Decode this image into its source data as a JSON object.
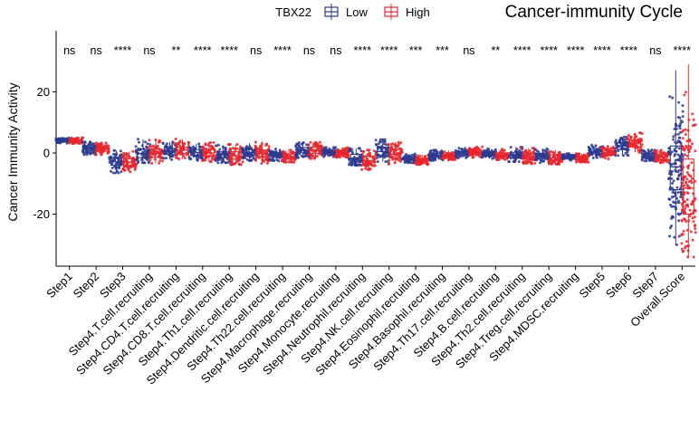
{
  "chart_data": {
    "type": "boxplot",
    "title": "Cancer-immunity Cycle",
    "ylabel": "Cancer Immunity Activity",
    "xlabel": "",
    "ylim": [
      -37,
      36
    ],
    "yticks": [
      -20,
      0,
      20
    ],
    "grid": false,
    "legend": {
      "title": "TBX22",
      "placement": "top",
      "entries": [
        {
          "name": "Low",
          "color": "#2b3b8f"
        },
        {
          "name": "High",
          "color": "#e8262b"
        }
      ]
    },
    "categories": [
      "Step1",
      "Step2",
      "Step3",
      "Step4.T.cell.recruiting",
      "Step4.CD4.T.cell.recruiting",
      "Step4.CD8.T.cell.recruiting",
      "Step4.Th1.cell.recruiting",
      "Step4.Dendritic.cell.recruiting",
      "Step4.Th22.cell.recruiting",
      "Step4.Macrophage.recruiting",
      "Step4.Monocyte.recruiting",
      "Step4.Neutrophil.recruiting",
      "Step4.NK.cell.recruiting",
      "Step4.Eosinophil.recruiting",
      "Step4.Basophil.recruiting",
      "Step4.Th17.cell.recruiting",
      "Step4.B.cell.recruiting",
      "Step4.Th2.cell.recruiting",
      "Step4.Treg.cell.recruiting",
      "Step4.MDSC.recruiting",
      "Step5",
      "Step6",
      "Step7",
      "Overall.Score"
    ],
    "significance": [
      "ns",
      "ns",
      "****",
      "ns",
      "**",
      "****",
      "****",
      "ns",
      "****",
      "ns",
      "ns",
      "****",
      "****",
      "***",
      "***",
      "ns",
      "**",
      "****",
      "****",
      "****",
      "****",
      "****",
      "ns",
      "****"
    ],
    "series": [
      {
        "name": "Low",
        "color": "#2b3b8f",
        "boxes": [
          {
            "min": 3.2,
            "q1": 3.7,
            "median": 4.1,
            "q3": 4.4,
            "max": 4.9
          },
          {
            "min": -0.5,
            "q1": 0.9,
            "median": 1.6,
            "q3": 2.4,
            "max": 3.6
          },
          {
            "min": -6.5,
            "q1": -4.0,
            "median": -2.8,
            "q3": -1.5,
            "max": 0.8
          },
          {
            "min": -3.2,
            "q1": -1.5,
            "median": -0.2,
            "q3": 1.2,
            "max": 4.5
          },
          {
            "min": -2.2,
            "q1": -0.5,
            "median": 0.5,
            "q3": 1.5,
            "max": 3.6
          },
          {
            "min": -2.4,
            "q1": -0.8,
            "median": 0.2,
            "q3": 1.1,
            "max": 3.0
          },
          {
            "min": -3.2,
            "q1": -1.6,
            "median": -0.6,
            "q3": 0.4,
            "max": 2.6
          },
          {
            "min": -2.5,
            "q1": -0.7,
            "median": 0.1,
            "q3": 1.1,
            "max": 3.2
          },
          {
            "min": -2.6,
            "q1": -1.4,
            "median": -0.7,
            "q3": 0.1,
            "max": 1.8
          },
          {
            "min": -1.6,
            "q1": 0.0,
            "median": 0.9,
            "q3": 1.8,
            "max": 3.4
          },
          {
            "min": -1.2,
            "q1": -0.2,
            "median": 0.3,
            "q3": 0.9,
            "max": 1.8
          },
          {
            "min": -4.0,
            "q1": -2.6,
            "median": -1.7,
            "q3": -0.4,
            "max": 1.5
          },
          {
            "min": -2.8,
            "q1": -0.8,
            "median": 0.5,
            "q3": 1.9,
            "max": 4.4
          },
          {
            "min": -3.2,
            "q1": -2.4,
            "median": -1.9,
            "q3": -1.3,
            "max": -0.3
          },
          {
            "min": -2.6,
            "q1": -1.4,
            "median": -0.8,
            "q3": -0.2,
            "max": 1.0
          },
          {
            "min": -1.6,
            "q1": -0.6,
            "median": -0.1,
            "q3": 0.5,
            "max": 1.6
          },
          {
            "min": -1.9,
            "q1": -0.9,
            "median": -0.3,
            "q3": 0.3,
            "max": 1.6
          },
          {
            "min": -2.8,
            "q1": -1.5,
            "median": -0.7,
            "q3": 0.2,
            "max": 1.9
          },
          {
            "min": -3.2,
            "q1": -1.8,
            "median": -1.0,
            "q3": -0.2,
            "max": 1.5
          },
          {
            "min": -2.4,
            "q1": -1.6,
            "median": -1.2,
            "q3": -0.8,
            "max": 0.0
          },
          {
            "min": -1.6,
            "q1": -0.2,
            "median": 0.5,
            "q3": 1.2,
            "max": 2.6
          },
          {
            "min": -0.8,
            "q1": 1.2,
            "median": 2.4,
            "q3": 3.4,
            "max": 5.2
          },
          {
            "min": -2.6,
            "q1": -1.7,
            "median": -1.0,
            "q3": -0.3,
            "max": 1.0
          },
          {
            "min": -30.0,
            "q1": -12.0,
            "median": -4.5,
            "q3": 2.3,
            "max": 27.0
          }
        ]
      },
      {
        "name": "High",
        "color": "#e8262b",
        "boxes": [
          {
            "min": 3.0,
            "q1": 3.6,
            "median": 4.0,
            "q3": 4.4,
            "max": 5.0
          },
          {
            "min": -0.6,
            "q1": 0.6,
            "median": 1.4,
            "q3": 2.1,
            "max": 3.3
          },
          {
            "min": -6.2,
            "q1": -4.2,
            "median": -3.0,
            "q3": -1.9,
            "max": 0.5
          },
          {
            "min": -3.4,
            "q1": -1.4,
            "median": -0.1,
            "q3": 1.3,
            "max": 4.8
          },
          {
            "min": -2.0,
            "q1": -0.2,
            "median": 0.9,
            "q3": 1.9,
            "max": 4.6
          },
          {
            "min": -2.8,
            "q1": -1.0,
            "median": 0.0,
            "q3": 1.2,
            "max": 3.4
          },
          {
            "min": -3.8,
            "q1": -2.0,
            "median": -0.9,
            "q3": 0.4,
            "max": 2.8
          },
          {
            "min": -3.4,
            "q1": -1.3,
            "median": -0.2,
            "q3": 1.0,
            "max": 3.8
          },
          {
            "min": -3.0,
            "q1": -2.0,
            "median": -1.3,
            "q3": -0.4,
            "max": 1.4
          },
          {
            "min": -1.8,
            "q1": -0.1,
            "median": 0.9,
            "q3": 1.9,
            "max": 3.5
          },
          {
            "min": -1.4,
            "q1": -0.4,
            "median": 0.1,
            "q3": 0.8,
            "max": 1.9
          },
          {
            "min": -5.4,
            "q1": -3.9,
            "median": -2.5,
            "q3": -1.1,
            "max": 1.0
          },
          {
            "min": -3.6,
            "q1": -1.6,
            "median": -0.4,
            "q3": 1.2,
            "max": 3.6
          },
          {
            "min": -3.8,
            "q1": -2.9,
            "median": -2.4,
            "q3": -1.7,
            "max": -0.5
          },
          {
            "min": -2.8,
            "q1": -1.6,
            "median": -1.1,
            "q3": -0.5,
            "max": 0.8
          },
          {
            "min": -1.4,
            "q1": -0.3,
            "median": 0.2,
            "q3": 0.8,
            "max": 2.0
          },
          {
            "min": -2.2,
            "q1": -1.3,
            "median": -0.7,
            "q3": 0.0,
            "max": 1.3
          },
          {
            "min": -3.4,
            "q1": -2.1,
            "median": -1.2,
            "q3": -0.3,
            "max": 1.6
          },
          {
            "min": -3.6,
            "q1": -2.4,
            "median": -1.6,
            "q3": -0.6,
            "max": 1.0
          },
          {
            "min": -3.0,
            "q1": -2.2,
            "median": -1.7,
            "q3": -1.0,
            "max": -0.2
          },
          {
            "min": -2.0,
            "q1": -0.7,
            "median": 0.1,
            "q3": 0.7,
            "max": 2.2
          },
          {
            "min": 0.2,
            "q1": 2.0,
            "median": 3.2,
            "q3": 4.2,
            "max": 6.6
          },
          {
            "min": -3.2,
            "q1": -2.0,
            "median": -1.3,
            "q3": -0.4,
            "max": 1.4
          },
          {
            "min": -34.0,
            "q1": -20.0,
            "median": -11.5,
            "q3": -2.0,
            "max": 29.0
          }
        ]
      }
    ]
  }
}
